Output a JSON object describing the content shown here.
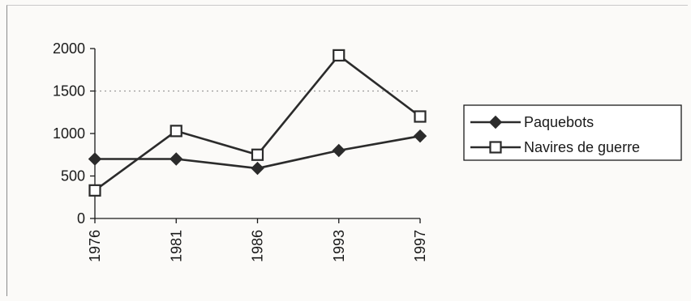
{
  "chart_data": {
    "type": "line",
    "categories": [
      "1976",
      "1981",
      "1986",
      "1993",
      "1997"
    ],
    "ylim": [
      0,
      2000
    ],
    "yticks": [
      0,
      500,
      1000,
      1500,
      2000
    ],
    "grid": "dotted line at 1500",
    "legend_position": "right",
    "series": [
      {
        "name": "Paquebots",
        "marker": "filled-diamond",
        "values": [
          700,
          700,
          590,
          800,
          970
        ]
      },
      {
        "name": "Navires de guerre",
        "marker": "open-square",
        "values": [
          330,
          1030,
          750,
          1920,
          1200
        ]
      }
    ]
  },
  "colors": {
    "line": "#2b2b2b",
    "axis": "#1a1a1a",
    "gridline": "#9a9a9a",
    "background": "#fbfaf8"
  }
}
